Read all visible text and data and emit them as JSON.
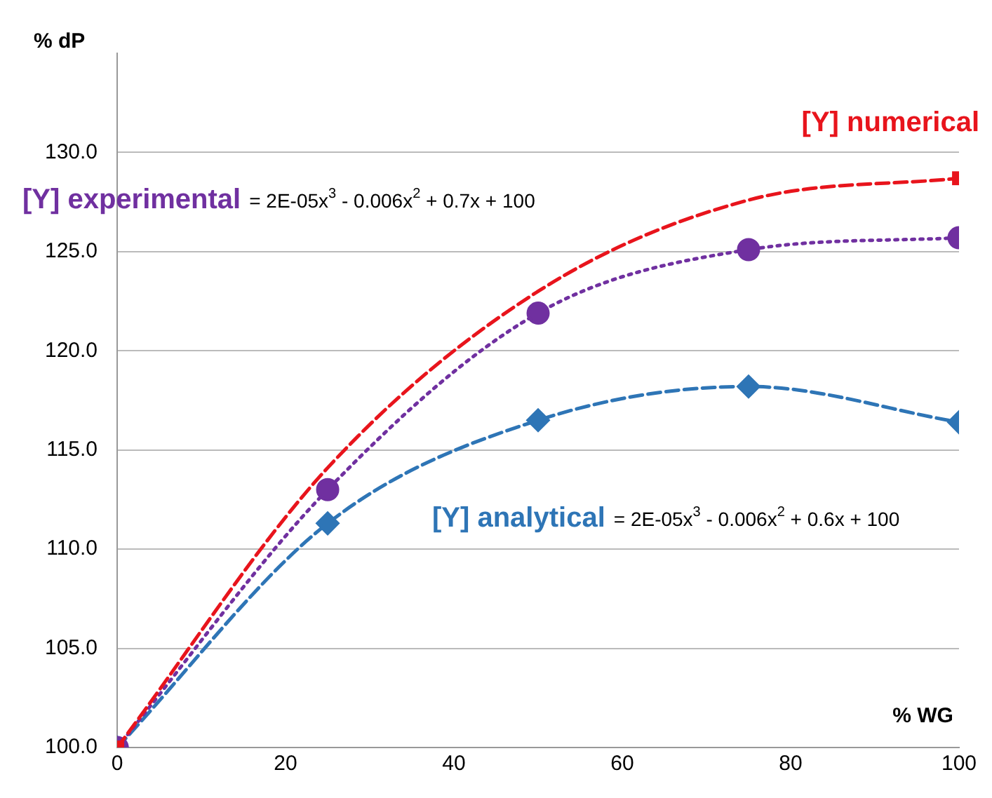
{
  "chart_data": {
    "type": "line",
    "xlabel": "% WG",
    "ylabel": "% dP",
    "xlim": [
      0,
      100
    ],
    "xticks": [
      0,
      20,
      40,
      60,
      80,
      100
    ],
    "ylim": [
      100,
      135
    ],
    "yticks": [
      {
        "value": 100,
        "label": "100.0"
      },
      {
        "value": 105,
        "label": "105.0"
      },
      {
        "value": 110,
        "label": "110.0"
      },
      {
        "value": 115,
        "label": "115.0"
      },
      {
        "value": 120,
        "label": "120.0"
      },
      {
        "value": 125,
        "label": "125.0"
      },
      {
        "value": 130,
        "label": "130.0"
      }
    ],
    "grid": "y",
    "legend": false,
    "series": [
      {
        "name": "[Y] numerical",
        "color": "#e8141c",
        "x": [
          0,
          25,
          50,
          75,
          100
        ],
        "values": [
          100,
          114.1,
          123.0,
          127.6,
          128.7
        ],
        "marker": "none",
        "line_style": "dashed"
      },
      {
        "type": "scatter",
        "color": "#e8141c",
        "x": [
          0,
          100
        ],
        "values": [
          100,
          128.7
        ],
        "marker": "square"
      },
      {
        "name": "[Y] experimental",
        "color": "#7030a0",
        "x": [
          0,
          25,
          50,
          75,
          100
        ],
        "values": [
          100,
          113.0,
          121.9,
          125.1,
          125.7
        ],
        "marker": "circle",
        "line_style": "dotted"
      },
      {
        "name": "[Y] analytical",
        "color": "#2e75b6",
        "x": [
          0,
          25,
          50,
          75,
          100
        ],
        "values": [
          100,
          111.3,
          116.5,
          118.2,
          116.4
        ],
        "marker": "diamond",
        "line_style": "dashed"
      }
    ],
    "annotations": [
      "= 2E-05x$^{3}$ - 0.006x$^{2}$ + 0.7x + 100",
      "= 2E-05x$^{3}$ - 0.006x$^{2}$ + 0.6x + 100"
    ]
  }
}
